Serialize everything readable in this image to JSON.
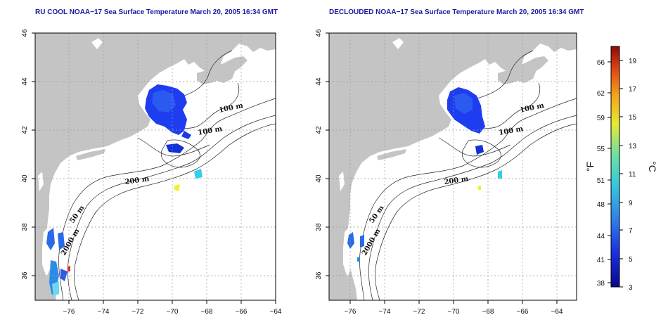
{
  "panels": [
    {
      "title": "RU COOL NOAA−17 Sea Surface Temperature March 20, 2005 16:34 GMT"
    },
    {
      "title": "DECLOUDED NOAA−17 Sea Surface Temperature March 20, 2005 16:34 GMT"
    }
  ],
  "axes": {
    "x_ticks": [
      "−76",
      "−74",
      "−72",
      "−70",
      "−68",
      "−66",
      "−64"
    ],
    "y_ticks": [
      "36",
      "38",
      "40",
      "42",
      "44",
      "46"
    ]
  },
  "contour_labels": [
    "100 m",
    "100 m",
    "200 m",
    "200 m",
    "50 m",
    "2000 m"
  ],
  "colorbar": {
    "fahrenheit_label": "°F",
    "celsius_label": "°C",
    "fahrenheit_ticks": [
      "66",
      "62",
      "59",
      "55",
      "51",
      "48",
      "44",
      "41",
      "38"
    ],
    "celsius_ticks": [
      "19",
      "17",
      "15",
      "13",
      "11",
      "9",
      "7",
      "5",
      "3"
    ],
    "colors": [
      "#08088c",
      "#1a2fe0",
      "#2f7fe8",
      "#35c6e0",
      "#6fe0a0",
      "#e8e832",
      "#f2a21c",
      "#e04a12",
      "#8c0a0a"
    ]
  },
  "colors": {
    "land": "#c4c4c4",
    "water": "#ffffff",
    "title": "#1a1a9e",
    "sst_cold": "#1f3df0"
  }
}
